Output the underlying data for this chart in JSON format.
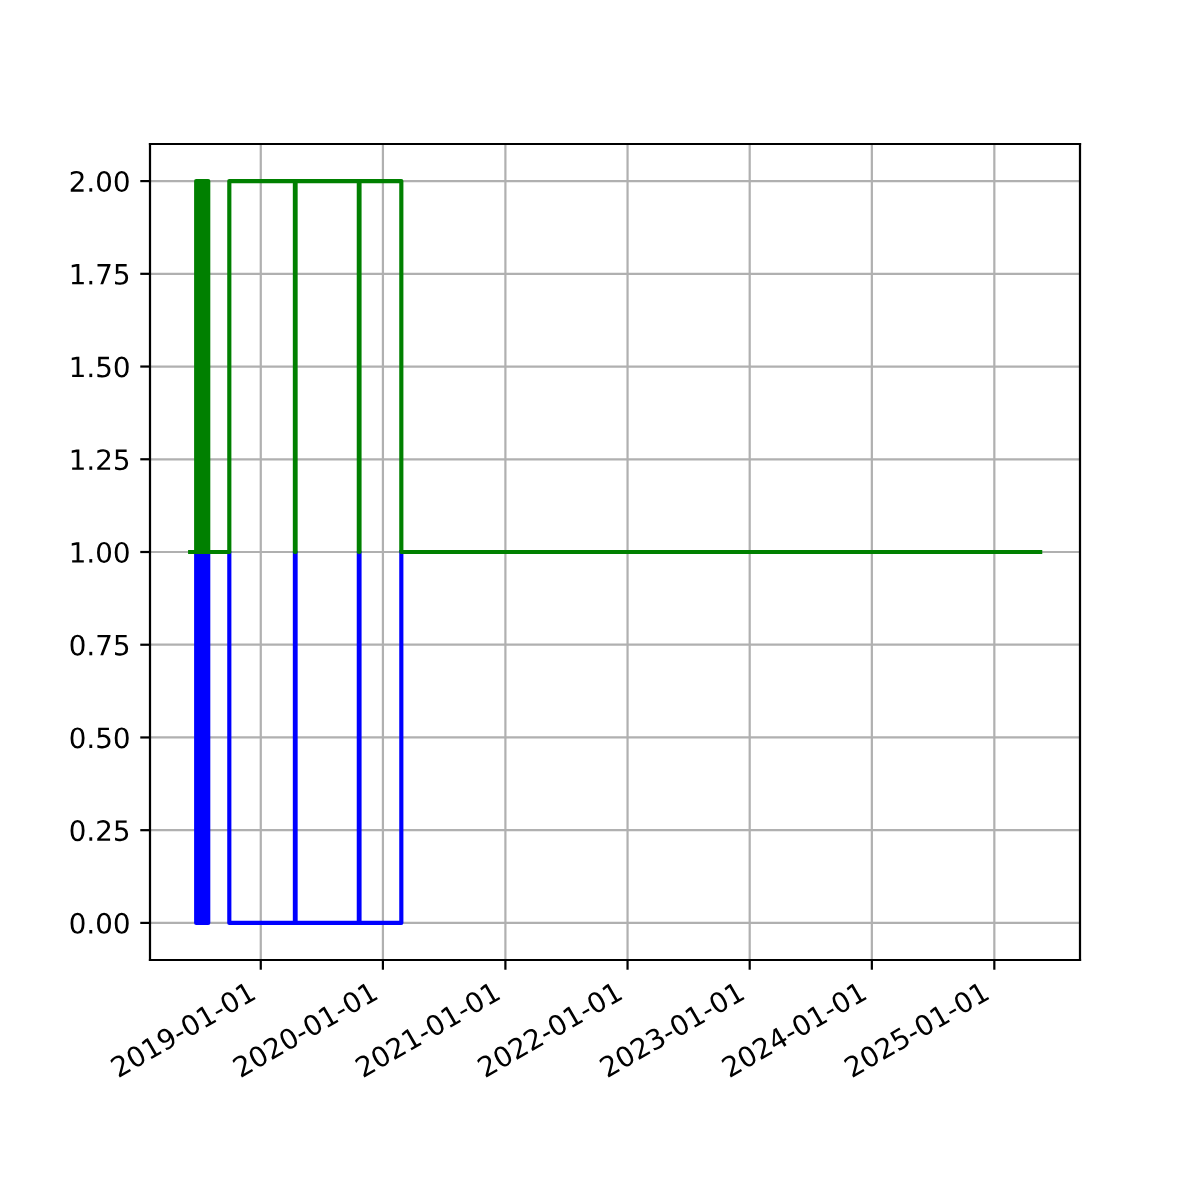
{
  "chart_data": {
    "type": "step",
    "x": [
      "2018-06-04",
      "2018-06-18",
      "2018-06-22",
      "2018-06-26",
      "2018-06-30",
      "2018-07-04",
      "2018-07-08",
      "2018-07-12",
      "2018-07-16",
      "2018-07-20",
      "2018-07-24",
      "2018-07-28",
      "2018-09-27",
      "2018-09-29",
      "2019-04-13",
      "2019-04-15",
      "2019-10-21",
      "2019-10-23",
      "2020-02-25",
      "2025-05-18"
    ],
    "series": [
      {
        "color": "#0000ff",
        "x": [
          "2018-06-18",
          "2018-06-22",
          "2018-06-26",
          "2018-06-30",
          "2018-07-04",
          "2018-07-08",
          "2018-07-12",
          "2018-07-16",
          "2018-07-20",
          "2018-07-24",
          "2018-07-28",
          "2018-09-27",
          "2018-09-29",
          "2019-04-13",
          "2019-04-15",
          "2019-10-21",
          "2019-10-23",
          "2020-02-25"
        ],
        "values": [
          1,
          0,
          1,
          0,
          1,
          0,
          1,
          0,
          1,
          0,
          1,
          1,
          0,
          1,
          0,
          1,
          0,
          1
        ]
      },
      {
        "color": "#008000",
        "values": [
          1,
          1,
          2,
          1,
          2,
          1,
          2,
          1,
          2,
          1,
          2,
          1,
          1,
          2,
          1,
          2,
          1,
          2,
          1,
          1
        ]
      }
    ],
    "xlim": [
      "2018-02-04",
      "2025-09-14"
    ],
    "xticks": [
      {
        "value": "2019-01-01",
        "label": "2019-01-01"
      },
      {
        "value": "2020-01-01",
        "label": "2020-01-01"
      },
      {
        "value": "2021-01-01",
        "label": "2021-01-01"
      },
      {
        "value": "2022-01-01",
        "label": "2022-01-01"
      },
      {
        "value": "2023-01-01",
        "label": "2023-01-01"
      },
      {
        "value": "2024-01-01",
        "label": "2024-01-01"
      },
      {
        "value": "2025-01-01",
        "label": "2025-01-01"
      }
    ],
    "ylim": [
      -0.1,
      2.1
    ],
    "yticks": [
      {
        "value": 0,
        "label": "0.00"
      },
      {
        "value": 0.25,
        "label": "0.25"
      },
      {
        "value": 0.5,
        "label": "0.50"
      },
      {
        "value": 0.75,
        "label": "0.75"
      },
      {
        "value": 1,
        "label": "1.00"
      },
      {
        "value": 1.25,
        "label": "1.25"
      },
      {
        "value": 1.5,
        "label": "1.50"
      },
      {
        "value": 1.75,
        "label": "1.75"
      },
      {
        "value": 2,
        "label": "2.00"
      }
    ],
    "grid": true
  }
}
